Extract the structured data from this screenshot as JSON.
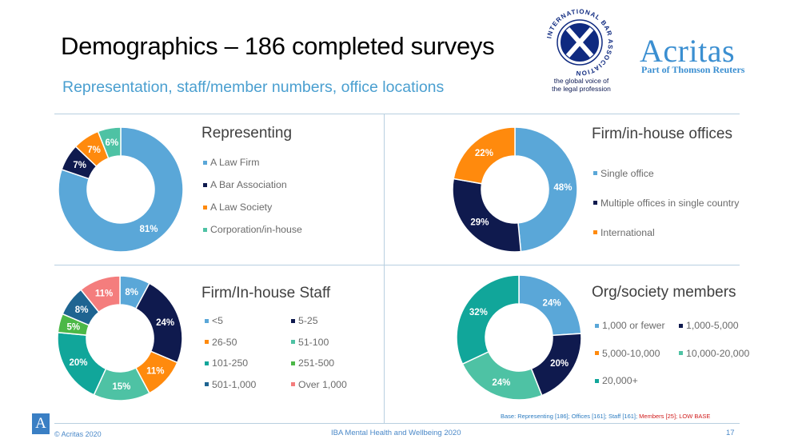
{
  "header": {
    "title": "Demographics – 186 completed surveys",
    "subtitle": "Representation, staff/member numbers, office locations"
  },
  "logos": {
    "iba_ring_text": "INTERNATIONAL BAR ASSOCIATION",
    "iba_tagline_1": "the global voice of",
    "iba_tagline_2": "the legal profession",
    "acritas_name": "Acritas",
    "acritas_sub": "Part of Thomson Reuters",
    "acritas_badge": "A"
  },
  "colors": {
    "light_blue": "#5aa7d8",
    "navy": "#0f1a4e",
    "orange": "#ff8a0d",
    "mint": "#4ec2a4",
    "teal": "#11a69a",
    "green": "#4cb847",
    "steel": "#1e6491",
    "salmon": "#f47d7d"
  },
  "chart_data": [
    {
      "type": "pie",
      "title": "Representing",
      "categories": [
        "A Law Firm",
        "A Bar Association",
        "A Law Society",
        "Corporation/in-house"
      ],
      "values": [
        81,
        7,
        7,
        6
      ],
      "labels": [
        "81%",
        "7%",
        "7%",
        "6%"
      ],
      "colors": [
        "#5aa7d8",
        "#0f1a4e",
        "#ff8a0d",
        "#4ec2a4"
      ]
    },
    {
      "type": "pie",
      "title": "Firm/in-house offices",
      "categories": [
        "Single office",
        "Multiple offices in single country",
        "International"
      ],
      "values": [
        48,
        29,
        22
      ],
      "labels": [
        "48%",
        "29%",
        "22%"
      ],
      "colors": [
        "#5aa7d8",
        "#0f1a4e",
        "#ff8a0d"
      ]
    },
    {
      "type": "pie",
      "title": "Firm/In-house Staff",
      "categories": [
        "<5",
        "5-25",
        "26-50",
        "51-100",
        "101-250",
        "251-500",
        "501-1,000",
        "Over 1,000"
      ],
      "values": [
        8,
        24,
        11,
        15,
        20,
        5,
        8,
        11
      ],
      "labels": [
        "8%",
        "24%",
        "11%",
        "15%",
        "20%",
        "5%",
        "8%",
        "11%"
      ],
      "colors": [
        "#5aa7d8",
        "#0f1a4e",
        "#ff8a0d",
        "#4ec2a4",
        "#11a69a",
        "#4cb847",
        "#1e6491",
        "#f47d7d"
      ]
    },
    {
      "type": "pie",
      "title": "Org/society members",
      "categories": [
        "1,000 or fewer",
        "1,000-5,000",
        "5,000-10,000",
        "10,000-20,000",
        "20,000+"
      ],
      "values": [
        24,
        20,
        24,
        32
      ],
      "plotted_categories": [
        "1,000 or fewer",
        "1,000-5,000",
        "10,000-20,000",
        "20,000+"
      ],
      "labels": [
        "24%",
        "20%",
        "24%",
        "32%"
      ],
      "colors": [
        "#5aa7d8",
        "#0f1a4e",
        "#4ec2a4",
        "#11a69a"
      ],
      "legend_colors": [
        "#5aa7d8",
        "#0f1a4e",
        "#ff8a0d",
        "#4ec2a4",
        "#11a69a"
      ]
    }
  ],
  "footnote": {
    "base_text": "Base: Representing [186]; Offices [161]; Staff [161]; ",
    "members_text": "Members [25]; LOW BASE"
  },
  "footer": {
    "copyright": "© Acritas 2020",
    "report": "IBA Mental Health and Wellbeing 2020",
    "page": "17"
  }
}
